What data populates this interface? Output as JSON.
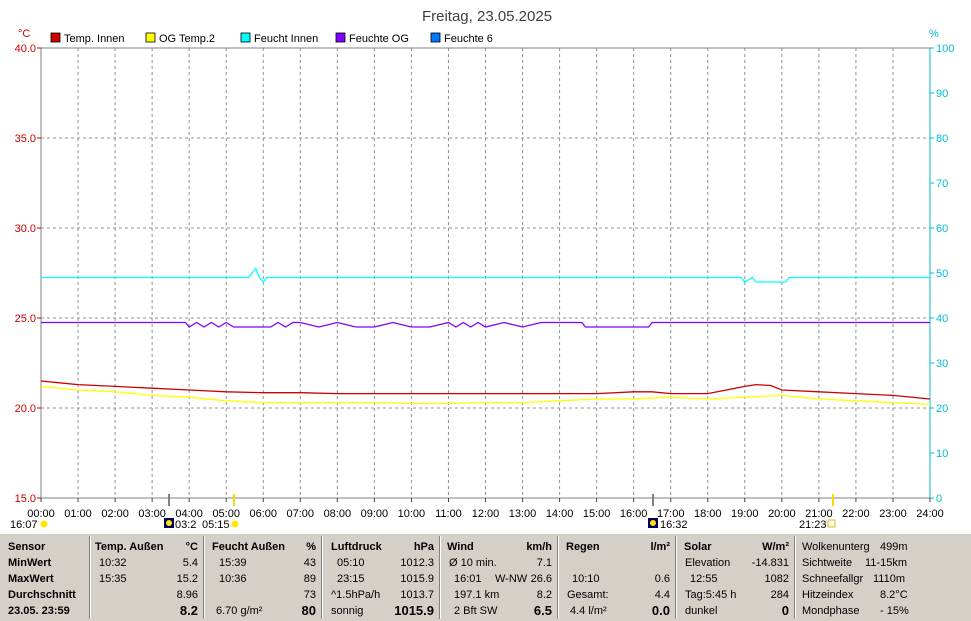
{
  "title": "Freitag, 23.05.2025",
  "left_unit": "°C",
  "right_unit": "%",
  "legend": [
    {
      "label": "Temp. Innen",
      "color": "#cc0000"
    },
    {
      "label": "OG Temp.2",
      "color": "#ffff00"
    },
    {
      "label": "Feucht Innen",
      "color": "#00ffff"
    },
    {
      "label": "Feuchte OG",
      "color": "#8000ff"
    },
    {
      "label": "Feuchte 6",
      "color": "#0078ff"
    }
  ],
  "chart_data": {
    "type": "line",
    "title": "Freitag, 23.05.2025",
    "x_ticks": [
      "00:00",
      "01:00",
      "02:00",
      "03:00",
      "04:00",
      "05:00",
      "06:00",
      "07:00",
      "08:00",
      "09:00",
      "10:00",
      "11:00",
      "12:00",
      "13:00",
      "14:00",
      "15:00",
      "16:00",
      "17:00",
      "18:00",
      "19:00",
      "20:00",
      "21:00",
      "22:00",
      "23:00",
      "24:00"
    ],
    "ylim_left": [
      15,
      40
    ],
    "y_ticks_left": [
      "15.0",
      "20.0",
      "25.0",
      "30.0",
      "35.0",
      "40.0"
    ],
    "ylim_right": [
      0,
      100
    ],
    "y_ticks_right": [
      "0",
      "10",
      "20",
      "30",
      "40",
      "50",
      "60",
      "70",
      "80",
      "90",
      "100"
    ],
    "grid": true,
    "legend_position": "top",
    "series": [
      {
        "name": "Temp. Innen",
        "axis": "left",
        "color": "#cc0000",
        "x": [
          0,
          0.5,
          1,
          2,
          3,
          4,
          5,
          6,
          7,
          8,
          9,
          10,
          11,
          12,
          13,
          14,
          15,
          16,
          16.5,
          17,
          18,
          18.5,
          19,
          19.3,
          19.7,
          20,
          21,
          22,
          23,
          24
        ],
        "y": [
          21.5,
          21.4,
          21.3,
          21.2,
          21.1,
          21.0,
          20.9,
          20.85,
          20.85,
          20.8,
          20.8,
          20.8,
          20.8,
          20.8,
          20.8,
          20.8,
          20.8,
          20.9,
          20.9,
          20.8,
          20.8,
          21.0,
          21.2,
          21.3,
          21.25,
          21.0,
          20.9,
          20.8,
          20.7,
          20.5
        ]
      },
      {
        "name": "OG Temp.2",
        "axis": "left",
        "color": "#ffff00",
        "x": [
          0,
          1,
          2,
          3,
          4,
          5,
          6,
          7,
          8,
          9,
          10,
          11,
          12,
          13,
          14,
          15,
          16,
          17,
          18,
          19,
          20,
          21,
          22,
          23,
          24
        ],
        "y": [
          21.2,
          21.0,
          20.9,
          20.7,
          20.6,
          20.4,
          20.3,
          20.3,
          20.3,
          20.3,
          20.25,
          20.25,
          20.3,
          20.3,
          20.4,
          20.5,
          20.5,
          20.6,
          20.5,
          20.6,
          20.7,
          20.5,
          20.4,
          20.3,
          20.2
        ]
      },
      {
        "name": "Feucht Innen",
        "axis": "right",
        "color": "#00ffff",
        "x": [
          0,
          5.6,
          5.7,
          5.8,
          5.9,
          6.0,
          6.1,
          18.9,
          19.0,
          19.2,
          19.3,
          20.1,
          20.2,
          24
        ],
        "y": [
          49,
          49,
          50,
          51,
          49,
          48,
          49,
          49,
          48,
          49,
          48,
          48,
          49,
          49
        ]
      },
      {
        "name": "Feuchte OG",
        "axis": "right",
        "color": "#8000ff",
        "x": [
          0,
          3.9,
          4.0,
          4.2,
          4.4,
          4.6,
          4.8,
          5.0,
          5.2,
          5.4,
          5.6,
          5.8,
          6.0,
          6.2,
          6.4,
          6.6,
          6.8,
          7.0,
          7.5,
          8.0,
          8.5,
          9.0,
          9.5,
          10.0,
          10.5,
          11.0,
          11.2,
          11.4,
          11.6,
          11.8,
          12.0,
          12.5,
          13.0,
          13.5,
          14.0,
          14.6,
          14.7,
          16.4,
          16.5,
          24
        ],
        "y": [
          39,
          39,
          38,
          39,
          38,
          39,
          38,
          39,
          38,
          38,
          38,
          38,
          38,
          38,
          39,
          38,
          39,
          39,
          38,
          39,
          38,
          38,
          39,
          38,
          38,
          39,
          38,
          39,
          38,
          39,
          38,
          39,
          38,
          39,
          39,
          39,
          38,
          38,
          39,
          39
        ]
      },
      {
        "name": "Feuchte 6",
        "axis": "right",
        "color": "#0078ff",
        "x": [],
        "y": []
      }
    ]
  },
  "time_markers": {
    "left_time": "16:07",
    "sunrise_time": "03:2",
    "sun_time": "05:15",
    "sunset_time": "16:32",
    "moon_time": "21:23"
  },
  "table": {
    "sensor": {
      "header": "Sensor",
      "rows": [
        "MinWert",
        "MaxWert",
        "Durchschnitt",
        "23.05. 23:59"
      ]
    },
    "temp": {
      "header": "Temp. Außen",
      "unit": "°C",
      "rows": [
        [
          "10:32",
          "5.4"
        ],
        [
          "15:35",
          "15.2"
        ],
        [
          "",
          "8.96"
        ],
        [
          "",
          "8.2"
        ]
      ]
    },
    "humid": {
      "header": "Feucht Außen",
      "unit": "%",
      "rows": [
        [
          "15:39",
          "43"
        ],
        [
          "10:36",
          "89"
        ],
        [
          "",
          "73"
        ],
        [
          "6.70 g/m²",
          "80"
        ]
      ]
    },
    "pressure": {
      "header": "Luftdruck",
      "unit": "hPa",
      "rows": [
        [
          "05:10",
          "1012.3"
        ],
        [
          "23:15",
          "1015.9"
        ],
        [
          "^1.5hPa/h",
          "1013.7"
        ],
        [
          "sonnig",
          "1015.9"
        ]
      ]
    },
    "wind": {
      "header": "Wind",
      "unit": "km/h",
      "rows": [
        [
          "Ø 10 min.",
          "",
          "7.1"
        ],
        [
          "16:01",
          "W-NW",
          "26.6"
        ],
        [
          "197.1 km",
          "",
          "8.2"
        ],
        [
          "2 Bft SW",
          "",
          "6.5"
        ]
      ]
    },
    "rain": {
      "header": "Regen",
      "unit": "l/m²",
      "rows": [
        [
          "",
          ""
        ],
        [
          "10:10",
          "0.6"
        ],
        [
          "Gesamt:",
          "4.4"
        ],
        [
          "4.4 l/m²",
          "0.0"
        ]
      ]
    },
    "solar": {
      "header": "Solar",
      "unit": "W/m²",
      "rows": [
        [
          "Elevation",
          "-14.831"
        ],
        [
          "12:55",
          "1082"
        ],
        [
          "Tag:5:45 h",
          "284"
        ],
        [
          "dunkel",
          "0"
        ]
      ]
    },
    "extra": {
      "rows": [
        [
          "Wolkenunterg",
          "499m"
        ],
        [
          "Sichtweite",
          "11-15km"
        ],
        [
          "Schneefallgr",
          "1110m"
        ],
        [
          "Hitzeindex",
          "8.2°C"
        ],
        [
          "Mondphase",
          "- 15%"
        ]
      ]
    }
  }
}
